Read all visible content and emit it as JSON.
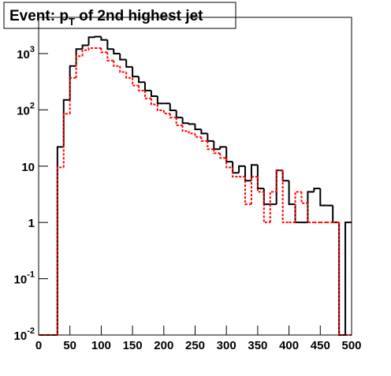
{
  "chart_data": {
    "type": "histogram",
    "title": [
      "Event: p",
      "T",
      " of 2nd highest jet"
    ],
    "bins": [
      0,
      10,
      20,
      30,
      40,
      50,
      60,
      70,
      80,
      90,
      100,
      110,
      120,
      130,
      140,
      150,
      160,
      170,
      180,
      190,
      200,
      210,
      220,
      230,
      240,
      250,
      260,
      270,
      280,
      290,
      300,
      310,
      320,
      330,
      340,
      350,
      360,
      370,
      380,
      390,
      400,
      410,
      420,
      430,
      440,
      450,
      460,
      470,
      480,
      490,
      500
    ],
    "series": [
      {
        "color": "#000000",
        "dash": "solid",
        "values": [
          0,
          0,
          0,
          22,
          150,
          600,
          1200,
          1400,
          1950,
          2000,
          1750,
          1200,
          1000,
          780,
          580,
          390,
          310,
          220,
          175,
          130,
          130,
          98,
          73,
          58,
          56,
          45,
          38,
          28,
          20,
          22,
          12,
          7.6,
          10,
          5.5,
          10.5,
          4,
          2.1,
          2.1,
          8.4,
          5.5,
          2.1,
          1,
          1,
          3.5,
          4,
          2,
          2,
          1,
          0,
          1
        ]
      },
      {
        "color": "#ff0000",
        "dash": "dashed",
        "values": [
          0,
          0,
          0,
          9.5,
          85,
          370,
          900,
          1150,
          1250,
          1250,
          1050,
          750,
          600,
          470,
          370,
          270,
          220,
          160,
          125,
          98,
          86,
          73,
          53,
          42,
          38,
          33,
          28,
          20,
          17,
          14,
          9.5,
          6.5,
          6.5,
          2.1,
          6.5,
          3.5,
          1,
          3.5,
          8.4,
          1,
          1,
          3.5,
          2.2,
          1,
          1,
          1,
          1,
          1,
          0,
          0
        ]
      }
    ],
    "xlim": [
      0,
      500
    ],
    "xticks": [
      0,
      50,
      100,
      150,
      200,
      250,
      300,
      350,
      400,
      450,
      500
    ],
    "ylim": [
      0.01,
      4400
    ],
    "log_y": true,
    "yticks": [
      {
        "value": 0.01,
        "label": "10",
        "exponent": "-2"
      },
      {
        "value": 0.1,
        "label": "10",
        "exponent": "-1"
      },
      1,
      10,
      {
        "value": 100,
        "label": "10",
        "exponent": "2"
      },
      {
        "value": 1000,
        "label": "10",
        "exponent": "3"
      }
    ]
  }
}
